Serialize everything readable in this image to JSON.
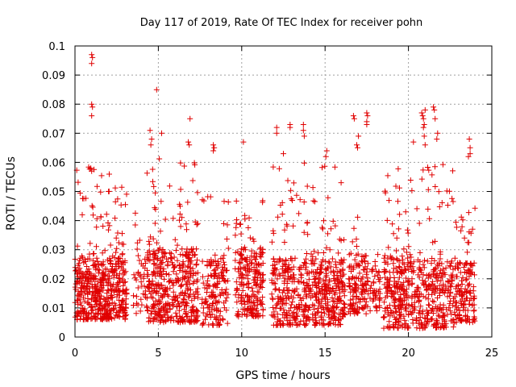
{
  "chart_data": {
    "type": "scatter",
    "title": "Day 117 of 2019, Rate Of TEC Index for receiver pohn",
    "xlabel": "GPS time / hours",
    "ylabel": "ROTI / TECUs",
    "xlim": [
      0,
      25
    ],
    "ylim": [
      0,
      0.1
    ],
    "x_ticks": [
      0,
      5,
      10,
      15,
      20,
      25
    ],
    "x_tick_labels": [
      "0",
      "5",
      "10",
      "15",
      "20",
      "25"
    ],
    "y_ticks": [
      0,
      0.01,
      0.02,
      0.03,
      0.04,
      0.05,
      0.06,
      0.07,
      0.08,
      0.09,
      0.1
    ],
    "y_tick_labels": [
      "0",
      "0.01",
      "0.02",
      "0.03",
      "0.04",
      "0.05",
      "0.06",
      "0.07",
      "0.08",
      "0.09",
      "0.1"
    ],
    "grid": true,
    "marker": "+",
    "marker_color": "#e00000",
    "series": [
      {
        "name": "ROTI",
        "clusters": [
          {
            "x_start": 0.0,
            "x_end": 3.1,
            "count": 520,
            "y_min": 0.006,
            "y_med": 0.016,
            "y_max": 0.06
          },
          {
            "x_start": 3.5,
            "x_end": 4.3,
            "count": 40,
            "y_min": 0.008,
            "y_med": 0.02,
            "y_max": 0.045
          },
          {
            "x_start": 4.3,
            "x_end": 7.4,
            "count": 430,
            "y_min": 0.005,
            "y_med": 0.018,
            "y_max": 0.062
          },
          {
            "x_start": 7.6,
            "x_end": 9.2,
            "count": 160,
            "y_min": 0.004,
            "y_med": 0.016,
            "y_max": 0.05
          },
          {
            "x_start": 9.6,
            "x_end": 11.3,
            "count": 230,
            "y_min": 0.007,
            "y_med": 0.018,
            "y_max": 0.047
          },
          {
            "x_start": 11.8,
            "x_end": 16.2,
            "count": 560,
            "y_min": 0.004,
            "y_med": 0.016,
            "y_max": 0.06
          },
          {
            "x_start": 16.4,
            "x_end": 17.6,
            "count": 130,
            "y_min": 0.008,
            "y_med": 0.017,
            "y_max": 0.05
          },
          {
            "x_start": 17.7,
            "x_end": 18.3,
            "count": 45,
            "y_min": 0.009,
            "y_med": 0.014,
            "y_max": 0.03
          },
          {
            "x_start": 18.5,
            "x_end": 22.8,
            "count": 520,
            "y_min": 0.003,
            "y_med": 0.016,
            "y_max": 0.06
          },
          {
            "x_start": 22.8,
            "x_end": 24.0,
            "count": 150,
            "y_min": 0.005,
            "y_med": 0.015,
            "y_max": 0.045
          }
        ],
        "outliers": [
          {
            "x": 1.0,
            "y": 0.097
          },
          {
            "x": 1.05,
            "y": 0.096
          },
          {
            "x": 1.0,
            "y": 0.094
          },
          {
            "x": 1.0,
            "y": 0.08
          },
          {
            "x": 1.05,
            "y": 0.079
          },
          {
            "x": 1.0,
            "y": 0.076
          },
          {
            "x": 0.95,
            "y": 0.058
          },
          {
            "x": 1.0,
            "y": 0.057
          },
          {
            "x": 4.9,
            "y": 0.085
          },
          {
            "x": 4.5,
            "y": 0.071
          },
          {
            "x": 4.6,
            "y": 0.068
          },
          {
            "x": 4.55,
            "y": 0.066
          },
          {
            "x": 5.2,
            "y": 0.07
          },
          {
            "x": 6.9,
            "y": 0.075
          },
          {
            "x": 6.8,
            "y": 0.067
          },
          {
            "x": 6.85,
            "y": 0.066
          },
          {
            "x": 8.3,
            "y": 0.066
          },
          {
            "x": 8.35,
            "y": 0.065
          },
          {
            "x": 8.3,
            "y": 0.064
          },
          {
            "x": 10.1,
            "y": 0.067
          },
          {
            "x": 12.1,
            "y": 0.072
          },
          {
            "x": 12.1,
            "y": 0.07
          },
          {
            "x": 12.5,
            "y": 0.063
          },
          {
            "x": 12.9,
            "y": 0.073
          },
          {
            "x": 12.9,
            "y": 0.072
          },
          {
            "x": 13.7,
            "y": 0.073
          },
          {
            "x": 13.7,
            "y": 0.071
          },
          {
            "x": 13.75,
            "y": 0.069
          },
          {
            "x": 15.1,
            "y": 0.064
          },
          {
            "x": 15.05,
            "y": 0.062
          },
          {
            "x": 16.7,
            "y": 0.076
          },
          {
            "x": 16.75,
            "y": 0.075
          },
          {
            "x": 17.0,
            "y": 0.069
          },
          {
            "x": 16.9,
            "y": 0.066
          },
          {
            "x": 16.95,
            "y": 0.065
          },
          {
            "x": 17.5,
            "y": 0.077
          },
          {
            "x": 17.55,
            "y": 0.076
          },
          {
            "x": 17.5,
            "y": 0.074
          },
          {
            "x": 17.5,
            "y": 0.073
          },
          {
            "x": 20.3,
            "y": 0.067
          },
          {
            "x": 20.8,
            "y": 0.077
          },
          {
            "x": 20.85,
            "y": 0.076
          },
          {
            "x": 20.9,
            "y": 0.075
          },
          {
            "x": 21.0,
            "y": 0.078
          },
          {
            "x": 20.95,
            "y": 0.073
          },
          {
            "x": 20.9,
            "y": 0.072
          },
          {
            "x": 20.95,
            "y": 0.069
          },
          {
            "x": 21.0,
            "y": 0.066
          },
          {
            "x": 21.5,
            "y": 0.079
          },
          {
            "x": 21.55,
            "y": 0.078
          },
          {
            "x": 21.6,
            "y": 0.075
          },
          {
            "x": 21.75,
            "y": 0.07
          },
          {
            "x": 21.7,
            "y": 0.068
          },
          {
            "x": 23.65,
            "y": 0.068
          },
          {
            "x": 23.7,
            "y": 0.065
          },
          {
            "x": 23.7,
            "y": 0.063
          },
          {
            "x": 23.6,
            "y": 0.062
          }
        ]
      }
    ]
  }
}
